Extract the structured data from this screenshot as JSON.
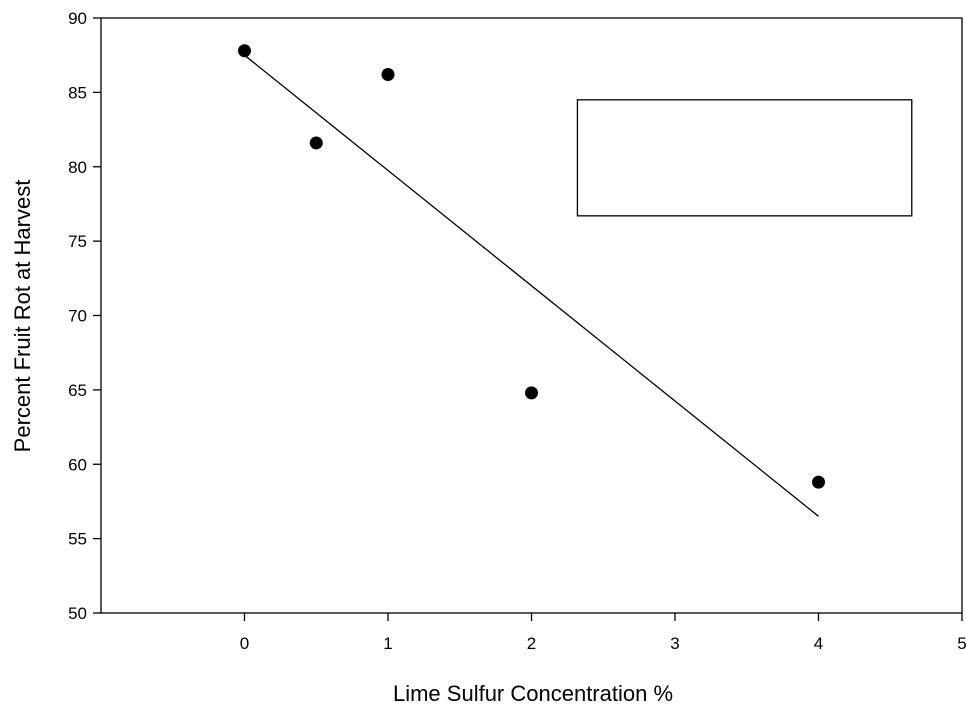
{
  "chart_data": {
    "type": "scatter",
    "title": "",
    "xlabel": "Lime Sulfur Concentration %",
    "ylabel": "Percent Fruit Rot at Harvest",
    "xlim": [
      -1,
      5
    ],
    "ylim": [
      50,
      90
    ],
    "xticks": [
      0,
      1,
      2,
      3,
      4,
      5
    ],
    "yticks": [
      50,
      55,
      60,
      65,
      70,
      75,
      80,
      85,
      90
    ],
    "grid": false,
    "points": [
      {
        "x": 0,
        "y": 87.8
      },
      {
        "x": 0.5,
        "y": 81.6
      },
      {
        "x": 1,
        "y": 86.2
      },
      {
        "x": 2,
        "y": 64.8
      },
      {
        "x": 4,
        "y": 58.8
      }
    ],
    "fit_line": {
      "x": [
        0,
        4
      ],
      "y": [
        87.5,
        56.5
      ]
    },
    "legend_box": "empty",
    "colors": {
      "marker": "#000000",
      "line": "#000000",
      "axis": "#000000"
    }
  }
}
